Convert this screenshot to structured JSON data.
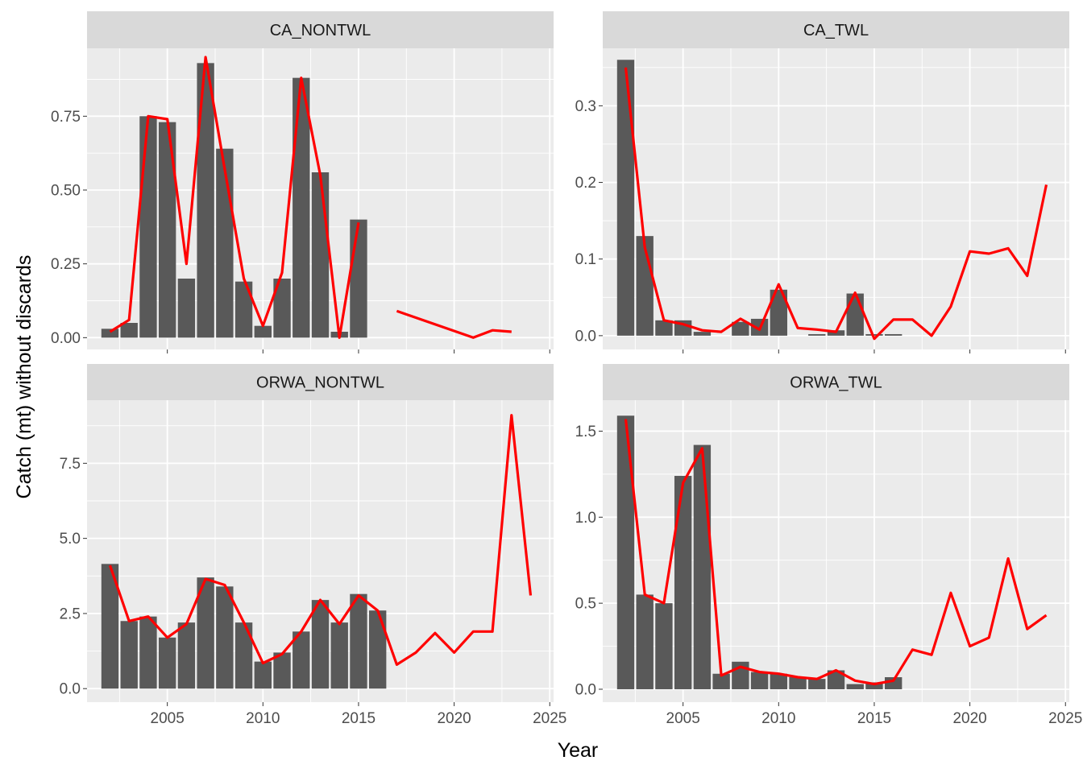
{
  "figure": {
    "xlabel": "Year",
    "ylabel": "Catch (mt) without discards",
    "colors": {
      "panel_bg": "#EBEBEB",
      "strip_bg": "#D9D9D9",
      "grid": "#FFFFFF",
      "bar": "#595959",
      "line": "#FF0000"
    }
  },
  "chart_data": [
    {
      "type": "bar",
      "title": "CA_NONTWL",
      "xlim": [
        2000.8,
        2025.2
      ],
      "x_ticks": [
        2005,
        2010,
        2015,
        2020,
        2025
      ],
      "ylim": [
        -0.04,
        0.98
      ],
      "y_ticks": [
        0.0,
        0.25,
        0.5,
        0.75
      ],
      "y_tick_labels": [
        "0.00",
        "0.25",
        "0.50",
        "0.75"
      ],
      "show_x_tick_labels": false,
      "bars": {
        "x": [
          2002,
          2003,
          2004,
          2005,
          2006,
          2007,
          2008,
          2009,
          2010,
          2011,
          2012,
          2013,
          2014,
          2015
        ],
        "values": [
          0.03,
          0.05,
          0.75,
          0.73,
          0.2,
          0.93,
          0.64,
          0.19,
          0.04,
          0.2,
          0.88,
          0.56,
          0.02,
          0.4
        ]
      },
      "line_segments": [
        {
          "x": [
            2002,
            2003,
            2004,
            2005,
            2006,
            2007,
            2008,
            2009,
            2010,
            2011,
            2012,
            2013,
            2014,
            2015
          ],
          "values": [
            0.02,
            0.06,
            0.75,
            0.74,
            0.25,
            0.95,
            0.57,
            0.2,
            0.04,
            0.22,
            0.88,
            0.55,
            0.0,
            0.39
          ]
        },
        {
          "x": [
            2017,
            2021,
            2022,
            2023
          ],
          "values": [
            0.09,
            0.0,
            0.025,
            0.02
          ]
        }
      ]
    },
    {
      "type": "bar",
      "title": "CA_TWL",
      "xlim": [
        2000.8,
        2025.2
      ],
      "x_ticks": [
        2005,
        2010,
        2015,
        2020,
        2025
      ],
      "ylim": [
        -0.018,
        0.375
      ],
      "y_ticks": [
        0.0,
        0.1,
        0.2,
        0.3
      ],
      "y_tick_labels": [
        "0.0",
        "0.1",
        "0.2",
        "0.3"
      ],
      "show_x_tick_labels": false,
      "bars": {
        "x": [
          2002,
          2003,
          2004,
          2005,
          2006,
          2007,
          2008,
          2009,
          2010,
          2011,
          2012,
          2013,
          2014,
          2015,
          2016
        ],
        "values": [
          0.36,
          0.13,
          0.02,
          0.02,
          0.005,
          0.0,
          0.018,
          0.022,
          0.06,
          0.0,
          0.002,
          0.007,
          0.055,
          0.002,
          0.002
        ]
      },
      "line_segments": [
        {
          "x": [
            2002,
            2003,
            2004,
            2005,
            2006,
            2007,
            2008,
            2009,
            2010,
            2011,
            2012,
            2013,
            2014,
            2015,
            2016,
            2017,
            2018,
            2019,
            2020,
            2021,
            2022,
            2023,
            2024
          ],
          "values": [
            0.35,
            0.115,
            0.02,
            0.015,
            0.007,
            0.005,
            0.022,
            0.008,
            0.067,
            0.01,
            0.008,
            0.005,
            0.056,
            -0.004,
            0.021,
            0.021,
            0.0,
            0.038,
            0.11,
            0.107,
            0.114,
            0.078,
            0.197
          ]
        }
      ]
    },
    {
      "type": "bar",
      "title": "ORWA_NONTWL",
      "xlim": [
        2000.8,
        2025.2
      ],
      "x_ticks": [
        2005,
        2010,
        2015,
        2020,
        2025
      ],
      "x_tick_labels": [
        "2005",
        "2010",
        "2015",
        "2020",
        "2025"
      ],
      "ylim": [
        -0.45,
        9.6
      ],
      "y_ticks": [
        0.0,
        2.5,
        5.0,
        7.5
      ],
      "y_tick_labels": [
        "0.0",
        "2.5",
        "5.0",
        "7.5"
      ],
      "show_x_tick_labels": true,
      "bars": {
        "x": [
          2002,
          2003,
          2004,
          2005,
          2006,
          2007,
          2008,
          2009,
          2010,
          2011,
          2012,
          2013,
          2014,
          2015,
          2016
        ],
        "values": [
          4.15,
          2.25,
          2.4,
          1.7,
          2.2,
          3.7,
          3.4,
          2.2,
          0.9,
          1.2,
          1.9,
          2.95,
          2.2,
          3.15,
          2.6
        ]
      },
      "line_segments": [
        {
          "x": [
            2002,
            2003,
            2004,
            2005,
            2006,
            2007,
            2008,
            2009,
            2010,
            2011,
            2012,
            2013,
            2014,
            2015,
            2016,
            2017,
            2018,
            2019,
            2020,
            2021,
            2022,
            2023,
            2024
          ],
          "values": [
            4.1,
            2.25,
            2.4,
            1.7,
            2.15,
            3.65,
            3.45,
            2.2,
            0.85,
            1.15,
            1.9,
            2.95,
            2.15,
            3.1,
            2.6,
            0.8,
            1.2,
            1.85,
            1.2,
            1.9,
            1.9,
            9.1,
            3.1
          ]
        }
      ]
    },
    {
      "type": "bar",
      "title": "ORWA_TWL",
      "xlim": [
        2000.8,
        2025.2
      ],
      "x_ticks": [
        2005,
        2010,
        2015,
        2020,
        2025
      ],
      "x_tick_labels": [
        "2005",
        "2010",
        "2015",
        "2020",
        "2025"
      ],
      "ylim": [
        -0.075,
        1.68
      ],
      "y_ticks": [
        0.0,
        0.5,
        1.0,
        1.5
      ],
      "y_tick_labels": [
        "0.0",
        "0.5",
        "1.0",
        "1.5"
      ],
      "show_x_tick_labels": true,
      "bars": {
        "x": [
          2002,
          2003,
          2004,
          2005,
          2006,
          2007,
          2008,
          2009,
          2010,
          2011,
          2012,
          2013,
          2014,
          2015,
          2016
        ],
        "values": [
          1.59,
          0.55,
          0.5,
          1.24,
          1.42,
          0.09,
          0.16,
          0.1,
          0.09,
          0.07,
          0.06,
          0.11,
          0.03,
          0.04,
          0.07
        ]
      },
      "line_segments": [
        {
          "x": [
            2002,
            2003,
            2004,
            2005,
            2006,
            2007,
            2008,
            2009,
            2010,
            2011,
            2012,
            2013,
            2014,
            2015,
            2016,
            2017,
            2018,
            2019,
            2020,
            2021,
            2022,
            2023,
            2024
          ],
          "values": [
            1.57,
            0.55,
            0.5,
            1.2,
            1.4,
            0.08,
            0.13,
            0.1,
            0.09,
            0.07,
            0.06,
            0.11,
            0.05,
            0.03,
            0.05,
            0.23,
            0.2,
            0.56,
            0.25,
            0.3,
            0.76,
            0.35,
            0.43
          ]
        }
      ]
    }
  ]
}
